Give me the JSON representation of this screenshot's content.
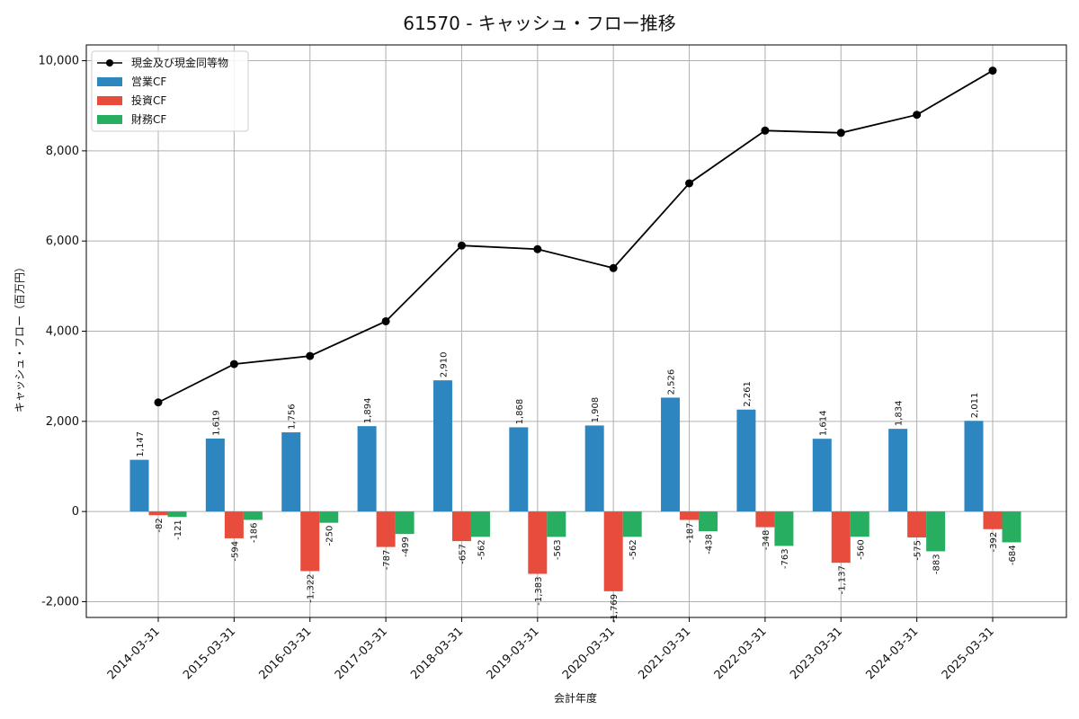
{
  "chart_data": {
    "type": "bar",
    "title": "61570 - キャッシュ・フロー推移",
    "xlabel": "会計年度",
    "ylabel": "キャッシュ・フロー（百万円）",
    "ylim": [
      -2350,
      10350
    ],
    "yticks": [
      -2000,
      0,
      2000,
      4000,
      6000,
      8000,
      10000
    ],
    "ytick_labels": [
      "-2,000",
      "0",
      "2,000",
      "4,000",
      "6,000",
      "8,000",
      "10,000"
    ],
    "grid": true,
    "legend_position": "top-left",
    "categories": [
      "2014-03-31",
      "2015-03-31",
      "2016-03-31",
      "2017-03-31",
      "2018-03-31",
      "2019-03-31",
      "2020-03-31",
      "2021-03-31",
      "2022-03-31",
      "2023-03-31",
      "2024-03-31",
      "2025-03-31"
    ],
    "line": {
      "name": "現金及び現金同等物",
      "color": "#000000",
      "values": [
        2420,
        3270,
        3450,
        4220,
        5900,
        5820,
        5400,
        7280,
        8450,
        8400,
        8800,
        9780
      ]
    },
    "series": [
      {
        "name": "営業CF",
        "color": "#2e86c1",
        "values": [
          1147,
          1619,
          1756,
          1894,
          2910,
          1868,
          1908,
          2526,
          2261,
          1614,
          1834,
          2011
        ],
        "labels": [
          "1,147",
          "1,619",
          "1,756",
          "1,894",
          "2,910",
          "1,868",
          "1,908",
          "2,526",
          "2,261",
          "1,614",
          "1,834",
          "2,011"
        ]
      },
      {
        "name": "投資CF",
        "color": "#e74c3c",
        "values": [
          -82,
          -594,
          -1322,
          -787,
          -657,
          -1383,
          -1769,
          -187,
          -348,
          -1137,
          -575,
          -392
        ],
        "labels": [
          "-82",
          "-594",
          "-1,322",
          "-787",
          "-657",
          "-1,383",
          "-1,769",
          "-187",
          "-348",
          "-1,137",
          "-575",
          "-392"
        ]
      },
      {
        "name": "財務CF",
        "color": "#27ae60",
        "values": [
          -121,
          -186,
          -250,
          -499,
          -562,
          -563,
          -562,
          -438,
          -763,
          -560,
          -883,
          -684
        ],
        "labels": [
          "-121",
          "-186",
          "-250",
          "-499",
          "-562",
          "-563",
          "-562",
          "-438",
          "-763",
          "-560",
          "-883",
          "-684"
        ]
      }
    ]
  }
}
